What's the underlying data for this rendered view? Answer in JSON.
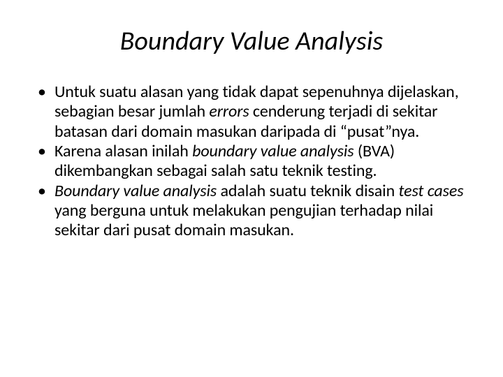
{
  "slide": {
    "title": "Boundary Value Analysis",
    "title_fontsize": 38,
    "title_fontstyle": "italic",
    "body_fontsize": 24,
    "background_color": "#ffffff",
    "text_color": "#000000",
    "bullets": [
      {
        "segments": [
          {
            "text": "Untuk suatu alasan yang tidak dapat sepenuhnya dijelaskan, sebagian besar jumlah ",
            "italic": false
          },
          {
            "text": "errors",
            "italic": true
          },
          {
            "text": " cenderung terjadi di sekitar batasan dari domain masukan daripada di “pusat”nya.",
            "italic": false
          }
        ]
      },
      {
        "segments": [
          {
            "text": "Karena alasan inilah ",
            "italic": false
          },
          {
            "text": "boundary value analysis",
            "italic": true
          },
          {
            "text": " (BVA) dikembangkan sebagai salah satu teknik testing.",
            "italic": false
          }
        ]
      },
      {
        "segments": [
          {
            "text": "Boundary value analysis",
            "italic": true
          },
          {
            "text": " adalah suatu teknik disain ",
            "italic": false
          },
          {
            "text": "test cases",
            "italic": true
          },
          {
            "text": " yang berguna untuk melakukan pengujian terhadap nilai sekitar dari pusat domain masukan.",
            "italic": false
          }
        ]
      }
    ]
  }
}
